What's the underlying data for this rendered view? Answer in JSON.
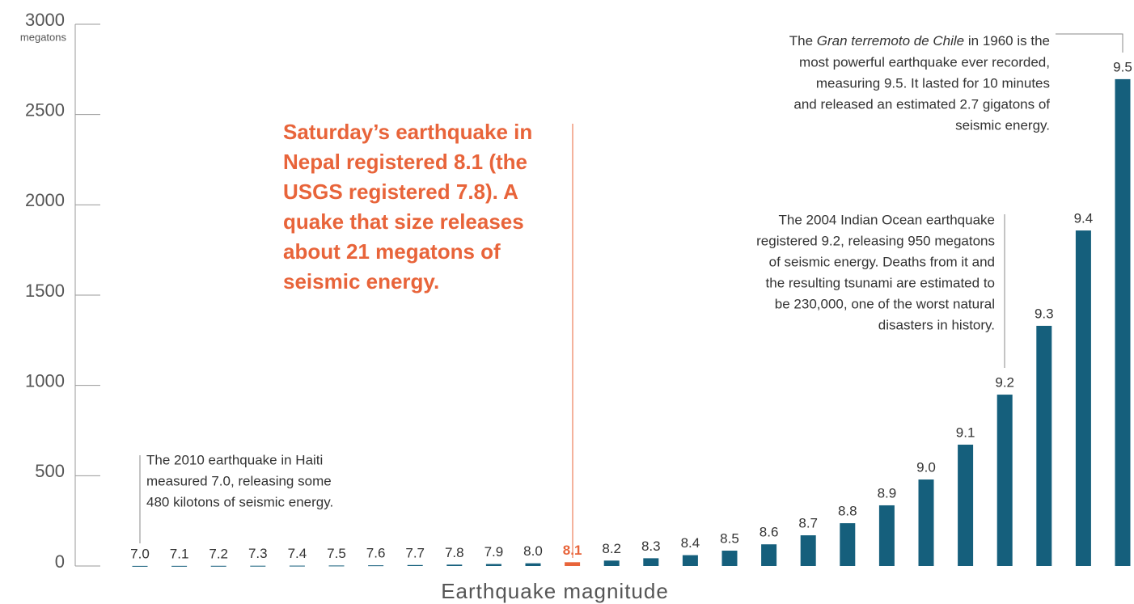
{
  "chart_data": {
    "type": "bar",
    "y_unit": "megatons",
    "x_label": "Earthquake magnitude",
    "categories": [
      "7.0",
      "7.1",
      "7.2",
      "7.3",
      "7.4",
      "7.5",
      "7.6",
      "7.7",
      "7.8",
      "7.9",
      "8.0",
      "8.1",
      "8.2",
      "8.3",
      "8.4",
      "8.5",
      "8.6",
      "8.7",
      "8.8",
      "8.9",
      "9.0",
      "9.1",
      "9.2",
      "9.3",
      "9.4",
      "9.5"
    ],
    "values": [
      0.48,
      0.67,
      0.95,
      1.35,
      1.9,
      2.7,
      3.8,
      5.4,
      7.6,
      11,
      15,
      21,
      30,
      43,
      60,
      85,
      120,
      170,
      237,
      336,
      479,
      672,
      949,
      1330,
      1858,
      2696
    ],
    "colors": [
      "#155f7c",
      "#155f7c",
      "#155f7c",
      "#155f7c",
      "#155f7c",
      "#155f7c",
      "#155f7c",
      "#155f7c",
      "#155f7c",
      "#155f7c",
      "#155f7c",
      "#e8643a",
      "#155f7c",
      "#155f7c",
      "#155f7c",
      "#155f7c",
      "#155f7c",
      "#155f7c",
      "#155f7c",
      "#155f7c",
      "#155f7c",
      "#155f7c",
      "#155f7c",
      "#155f7c",
      "#155f7c",
      "#155f7c"
    ],
    "ylim": [
      0,
      3000
    ],
    "yticks": [
      0,
      500,
      1000,
      1500,
      2000,
      2500,
      3000
    ],
    "grid": false,
    "annotations": {
      "haiti": [
        "The 2010 earthquake in Haiti",
        "measured 7.0, releasing some",
        "480 kilotons of seismic energy."
      ],
      "nepal": [
        "Saturday’s earthquake in",
        "Nepal registered 8.1 (the",
        "USGS registered 7.8). A",
        "quake that size releases",
        "about 21 megatons of",
        "seismic energy."
      ],
      "indian": [
        "The 2004 Indian Ocean earthquake",
        "registered 9.2, releasing 950 megatons",
        "of seismic energy. Deaths from it and",
        "the resulting tsunami are estimated to",
        "be 230,000, one of the worst natural",
        "disasters in history."
      ],
      "chile": [
        [
          {
            "text": "The "
          },
          {
            "text": "Gran terremoto de Chile",
            "italic": true
          },
          {
            "text": " in 1960 is the"
          }
        ],
        "most powerful earthquake ever recorded,",
        "measuring 9.5. It lasted for 10 minutes",
        "and released an estimated 2.7 gigatons of",
        "seismic energy."
      ]
    }
  }
}
